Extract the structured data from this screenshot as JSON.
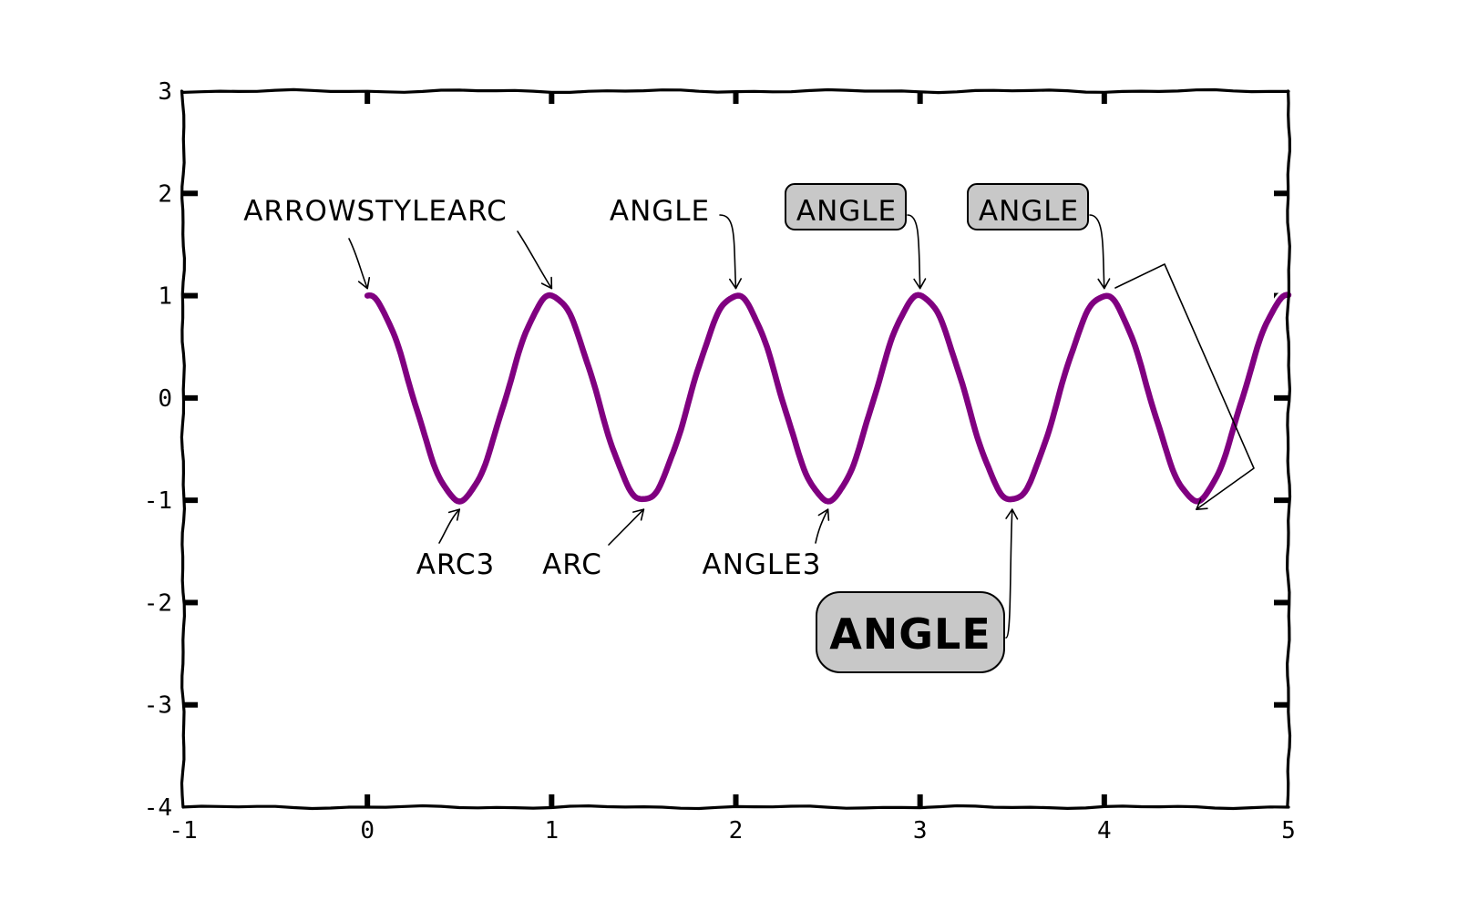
{
  "chart_data": {
    "type": "line",
    "style": "xkcd",
    "title": "",
    "xlabel": "",
    "ylabel": "",
    "xlim": [
      -1,
      5
    ],
    "ylim": [
      -4,
      3
    ],
    "xticks": [
      "-1",
      "0",
      "1",
      "2",
      "3",
      "4",
      "5"
    ],
    "yticks": [
      "-4",
      "-3",
      "-2",
      "-1",
      "0",
      "1",
      "2",
      "3"
    ],
    "grid": false,
    "legend": "none",
    "line_color": "#800080",
    "series": [
      {
        "function": "cos(2*pi*x)",
        "x": [
          0,
          0.25,
          0.5,
          0.75,
          1,
          1.25,
          1.5,
          1.75,
          2,
          2.25,
          2.5,
          2.75,
          3,
          3.25,
          3.5,
          3.75,
          4,
          4.25,
          4.5,
          4.75,
          5
        ],
        "values": [
          1,
          0,
          -1,
          0,
          1,
          0,
          -1,
          0,
          1,
          0,
          -1,
          0,
          1,
          0,
          -1,
          0,
          1,
          0,
          -1,
          0,
          1
        ]
      }
    ],
    "annotations": [
      {
        "text": "ARROWSTYLEARC",
        "x": 0,
        "y": 1,
        "style": "plain"
      },
      {
        "text": "ARC3",
        "x": 0.5,
        "y": -1,
        "style": "plain"
      },
      {
        "text": "ARROWSTYLEARC",
        "x": 1,
        "y": 1,
        "style": "plain",
        "hidden_text": true
      },
      {
        "text": "ARC",
        "x": 1.5,
        "y": -1,
        "style": "plain"
      },
      {
        "text": "ANGLE",
        "x": 2,
        "y": 1,
        "style": "plain"
      },
      {
        "text": "ANGLE3",
        "x": 2.5,
        "y": -1,
        "style": "plain"
      },
      {
        "text": "ANGLE",
        "x": 3,
        "y": 1,
        "style": "box"
      },
      {
        "text": "ANGLE",
        "x": 3.5,
        "y": -1,
        "style": "box-large"
      },
      {
        "text": "ANGLE",
        "x": 4,
        "y": 1,
        "style": "box"
      },
      {
        "text": "",
        "x": 4.5,
        "y": -1,
        "style": "bar"
      }
    ]
  }
}
